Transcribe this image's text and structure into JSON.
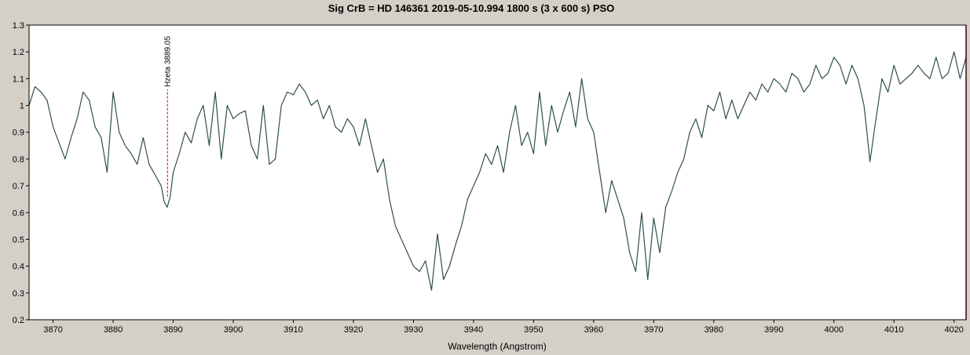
{
  "chart_data": {
    "type": "line",
    "title": "Sig CrB = HD 146361  2019-05-10.994   1800 s (3 x 600 s)   PSO",
    "xlabel": "Wavelength (Angstrom)",
    "ylabel": "",
    "xlim": [
      3866,
      4022
    ],
    "ylim": [
      0.2,
      1.3
    ],
    "xticks": [
      3870,
      3880,
      3890,
      3900,
      3910,
      3920,
      3930,
      3940,
      3950,
      3960,
      3970,
      3980,
      3990,
      4000,
      4010,
      4020
    ],
    "yticks": [
      0.2,
      0.3,
      0.4,
      0.5,
      0.6,
      0.7,
      0.8,
      0.9,
      1,
      1.1,
      1.2,
      1.3
    ],
    "grid": false,
    "colors": {
      "line": "#2f4f4f",
      "annotation": "#cc0000",
      "plot_bg": "#ffffff",
      "frame_bg": "#d4d0c8",
      "right_edge": "#cc0000"
    },
    "series": [
      {
        "x": [
          3866,
          3867,
          3868,
          3869,
          3870,
          3871,
          3872,
          3873,
          3874,
          3875,
          3876,
          3877,
          3878,
          3879,
          3880,
          3881,
          3882,
          3883,
          3884,
          3885,
          3886,
          3887,
          3888,
          3888.5,
          3889,
          3889.5,
          3890,
          3891,
          3892,
          3893,
          3894,
          3895,
          3896,
          3897,
          3898,
          3899,
          3900,
          3901,
          3902,
          3903,
          3904,
          3905,
          3906,
          3907,
          3908,
          3909,
          3910,
          3911,
          3912,
          3913,
          3914,
          3915,
          3916,
          3917,
          3918,
          3919,
          3920,
          3921,
          3922,
          3923,
          3924,
          3925,
          3926,
          3927,
          3928,
          3929,
          3930,
          3931,
          3932,
          3933,
          3934,
          3935,
          3936,
          3937,
          3938,
          3939,
          3940,
          3941,
          3942,
          3943,
          3944,
          3945,
          3946,
          3947,
          3948,
          3949,
          3950,
          3951,
          3952,
          3953,
          3954,
          3955,
          3956,
          3957,
          3958,
          3959,
          3960,
          3961,
          3962,
          3963,
          3964,
          3965,
          3966,
          3967,
          3968,
          3969,
          3970,
          3971,
          3972,
          3973,
          3974,
          3975,
          3976,
          3977,
          3978,
          3979,
          3980,
          3981,
          3982,
          3983,
          3984,
          3985,
          3986,
          3987,
          3988,
          3989,
          3990,
          3991,
          3992,
          3993,
          3994,
          3995,
          3996,
          3997,
          3998,
          3999,
          4000,
          4001,
          4002,
          4003,
          4004,
          4005,
          4005.5,
          4006,
          4007,
          4008,
          4009,
          4010,
          4011,
          4012,
          4013,
          4014,
          4015,
          4016,
          4017,
          4018,
          4019,
          4020,
          4021,
          4022
        ],
        "y": [
          1.0,
          1.07,
          1.05,
          1.02,
          0.92,
          0.86,
          0.8,
          0.88,
          0.95,
          1.05,
          1.02,
          0.92,
          0.88,
          0.75,
          1.05,
          0.9,
          0.85,
          0.82,
          0.78,
          0.88,
          0.78,
          0.74,
          0.7,
          0.64,
          0.62,
          0.66,
          0.75,
          0.82,
          0.9,
          0.86,
          0.95,
          1.0,
          0.85,
          1.05,
          0.8,
          1.0,
          0.95,
          0.97,
          0.98,
          0.85,
          0.8,
          1.0,
          0.78,
          0.8,
          1.0,
          1.05,
          1.04,
          1.08,
          1.05,
          1.0,
          1.02,
          0.95,
          1.0,
          0.92,
          0.9,
          0.95,
          0.92,
          0.85,
          0.95,
          0.85,
          0.75,
          0.8,
          0.65,
          0.55,
          0.5,
          0.45,
          0.4,
          0.38,
          0.42,
          0.31,
          0.52,
          0.35,
          0.4,
          0.48,
          0.55,
          0.65,
          0.7,
          0.75,
          0.82,
          0.78,
          0.85,
          0.75,
          0.9,
          1.0,
          0.85,
          0.9,
          0.82,
          1.05,
          0.85,
          1.0,
          0.9,
          0.98,
          1.05,
          0.92,
          1.1,
          0.95,
          0.9,
          0.75,
          0.6,
          0.72,
          0.65,
          0.58,
          0.45,
          0.38,
          0.6,
          0.35,
          0.58,
          0.45,
          0.62,
          0.68,
          0.75,
          0.8,
          0.9,
          0.95,
          0.88,
          1.0,
          0.98,
          1.05,
          0.95,
          1.02,
          0.95,
          1.0,
          1.05,
          1.02,
          1.08,
          1.05,
          1.1,
          1.08,
          1.05,
          1.12,
          1.1,
          1.05,
          1.08,
          1.15,
          1.1,
          1.12,
          1.18,
          1.15,
          1.08,
          1.15,
          1.1,
          1.0,
          0.9,
          0.79,
          0.95,
          1.1,
          1.05,
          1.15,
          1.08,
          1.1,
          1.12,
          1.15,
          1.12,
          1.1,
          1.18,
          1.1,
          1.12,
          1.2,
          1.1,
          1.18
        ]
      }
    ],
    "annotations": [
      {
        "x": 3889.05,
        "label": "Hzeta 3889.05",
        "y_from": 0.66,
        "y_to": 1.06
      }
    ]
  }
}
